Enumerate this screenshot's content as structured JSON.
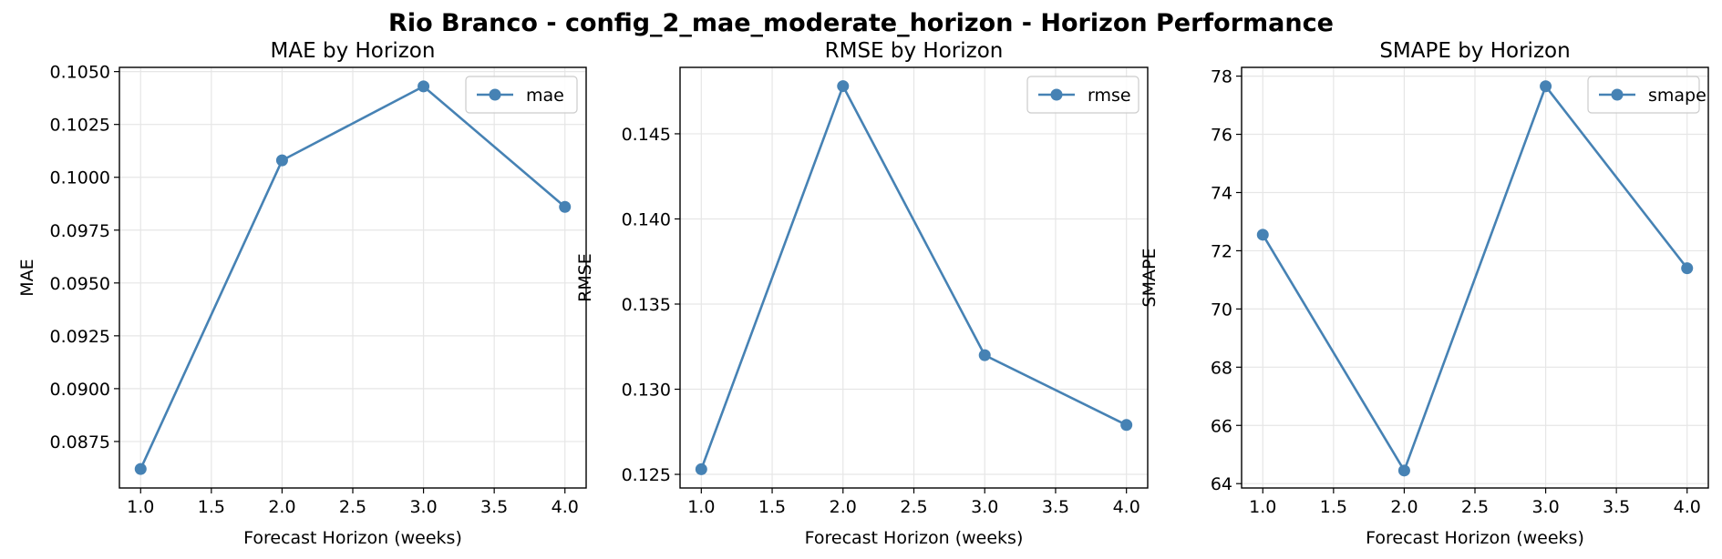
{
  "suptitle": "Rio Branco - config_2_mae_moderate_horizon - Horizon Performance",
  "colors": {
    "series": "#4682b4",
    "grid": "#e6e6e6",
    "axis": "#000000"
  },
  "chart_data": [
    {
      "type": "line",
      "title": "MAE by Horizon",
      "xlabel": "Forecast Horizon (weeks)",
      "ylabel": "MAE",
      "x": [
        1.0,
        2.0,
        3.0,
        4.0
      ],
      "series": [
        {
          "name": "mae",
          "values": [
            0.0862,
            0.1008,
            0.1043,
            0.0986
          ]
        }
      ],
      "xlim": [
        0.85,
        4.15
      ],
      "ylim": [
        0.0853,
        0.1052
      ],
      "xticks": [
        1.0,
        1.5,
        2.0,
        2.5,
        3.0,
        3.5,
        4.0
      ],
      "xtick_labels": [
        "1.0",
        "1.5",
        "2.0",
        "2.5",
        "3.0",
        "3.5",
        "4.0"
      ],
      "yticks": [
        0.0875,
        0.09,
        0.0925,
        0.095,
        0.0975,
        0.1,
        0.1025,
        0.105
      ],
      "ytick_labels": [
        "0.0875",
        "0.0900",
        "0.0925",
        "0.0950",
        "0.0975",
        "0.1000",
        "0.1025",
        "0.1050"
      ],
      "grid": true,
      "legend": "upper right"
    },
    {
      "type": "line",
      "title": "RMSE by Horizon",
      "xlabel": "Forecast Horizon (weeks)",
      "ylabel": "RMSE",
      "x": [
        1.0,
        2.0,
        3.0,
        4.0
      ],
      "series": [
        {
          "name": "rmse",
          "values": [
            0.1253,
            0.1478,
            0.132,
            0.1279
          ]
        }
      ],
      "xlim": [
        0.85,
        4.15
      ],
      "ylim": [
        0.1242,
        0.1489
      ],
      "xticks": [
        1.0,
        1.5,
        2.0,
        2.5,
        3.0,
        3.5,
        4.0
      ],
      "xtick_labels": [
        "1.0",
        "1.5",
        "2.0",
        "2.5",
        "3.0",
        "3.5",
        "4.0"
      ],
      "yticks": [
        0.125,
        0.13,
        0.135,
        0.14,
        0.145
      ],
      "ytick_labels": [
        "0.125",
        "0.130",
        "0.135",
        "0.140",
        "0.145"
      ],
      "grid": true,
      "legend": "upper right"
    },
    {
      "type": "line",
      "title": "SMAPE by Horizon",
      "xlabel": "Forecast Horizon (weeks)",
      "ylabel": "SMAPE",
      "x": [
        1.0,
        2.0,
        3.0,
        4.0
      ],
      "series": [
        {
          "name": "smape",
          "values": [
            72.55,
            64.45,
            77.65,
            71.4
          ]
        }
      ],
      "xlim": [
        0.85,
        4.15
      ],
      "ylim": [
        63.85,
        78.3
      ],
      "xticks": [
        1.0,
        1.5,
        2.0,
        2.5,
        3.0,
        3.5,
        4.0
      ],
      "xtick_labels": [
        "1.0",
        "1.5",
        "2.0",
        "2.5",
        "3.0",
        "3.5",
        "4.0"
      ],
      "yticks": [
        64,
        66,
        68,
        70,
        72,
        74,
        76,
        78
      ],
      "ytick_labels": [
        "64",
        "66",
        "68",
        "70",
        "72",
        "74",
        "76",
        "78"
      ],
      "grid": true,
      "legend": "upper right"
    }
  ]
}
